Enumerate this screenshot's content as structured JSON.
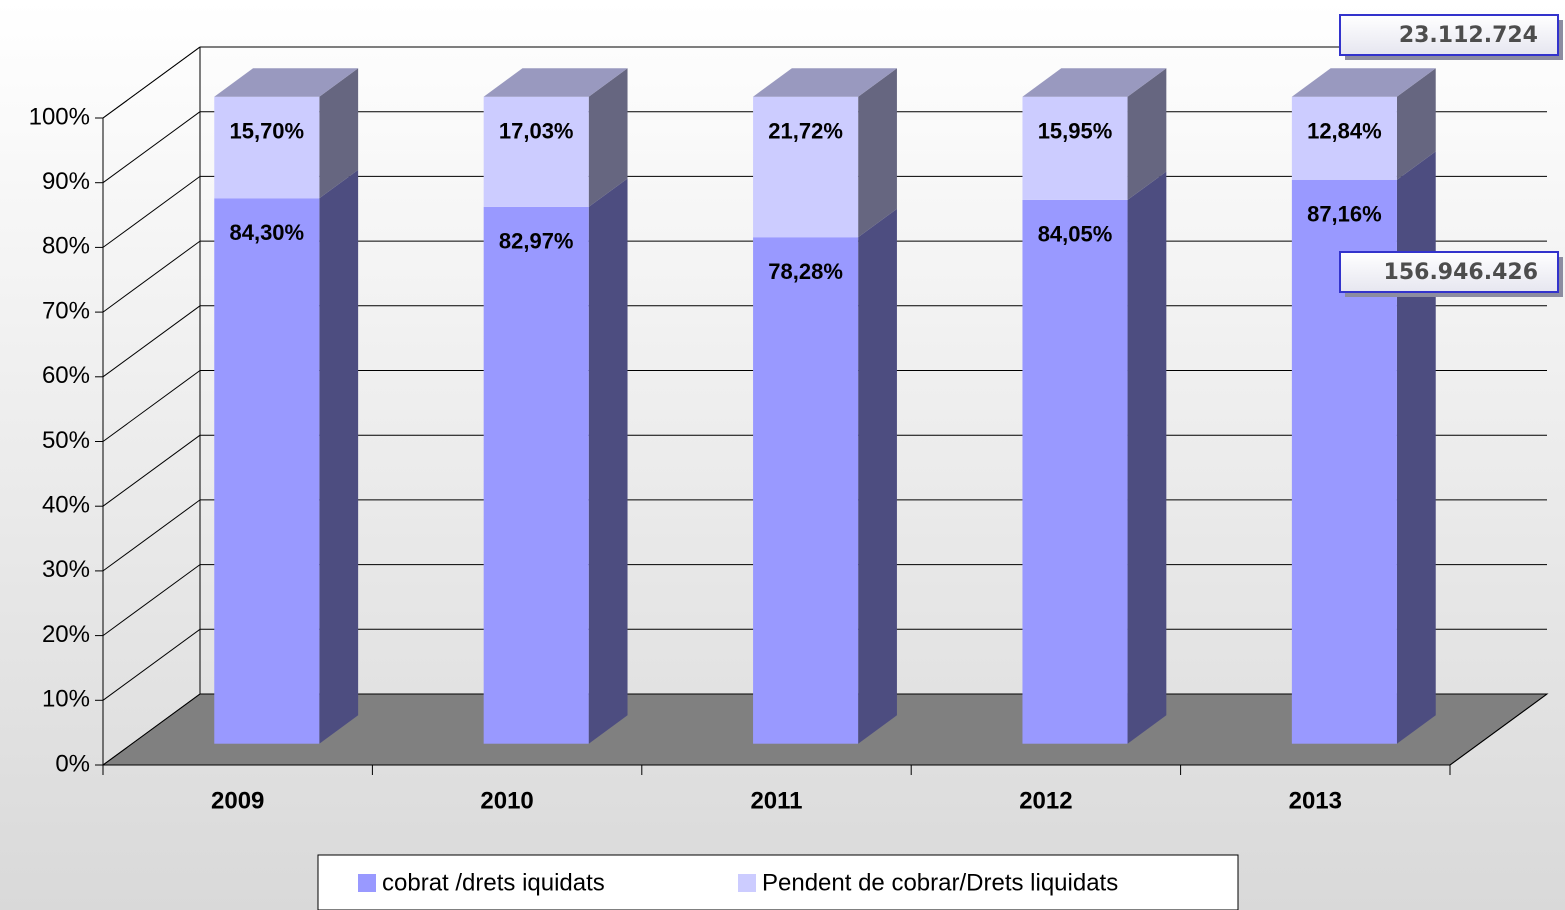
{
  "chart_data": {
    "type": "bar3d_stacked",
    "categories": [
      "2009",
      "2010",
      "2011",
      "2012",
      "2013"
    ],
    "series": [
      {
        "name": "cobrat /drets iquidats",
        "color": "#9999ff",
        "values": [
          84.3,
          82.97,
          78.28,
          84.05,
          87.16
        ],
        "value_labels": [
          "84,30%",
          "82,97%",
          "78,28%",
          "84,05%",
          "87,16%"
        ]
      },
      {
        "name": "Pendent de cobrar/Drets liquidats",
        "color": "#ccccff",
        "values": [
          15.7,
          17.03,
          21.72,
          15.95,
          12.84
        ],
        "value_labels": [
          "15,70%",
          "17,03%",
          "21,72%",
          "15,95%",
          "12,84%"
        ]
      }
    ],
    "ylim": [
      0,
      100
    ],
    "yticks": [
      {
        "value": 0,
        "label": "0%"
      },
      {
        "value": 10,
        "label": "10%"
      },
      {
        "value": 20,
        "label": "20%"
      },
      {
        "value": 30,
        "label": "30%"
      },
      {
        "value": 40,
        "label": "40%"
      },
      {
        "value": 50,
        "label": "50%"
      },
      {
        "value": 60,
        "label": "60%"
      },
      {
        "value": 70,
        "label": "70%"
      },
      {
        "value": 80,
        "label": "80%"
      },
      {
        "value": 90,
        "label": "90%"
      },
      {
        "value": 100,
        "label": "100%"
      }
    ],
    "grid": true,
    "floor_color": "#808080",
    "annotations": [
      "23.112.724",
      "156.946.426"
    ],
    "legend": "bottom"
  }
}
